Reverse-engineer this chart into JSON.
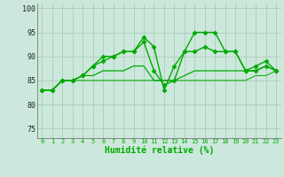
{
  "xlabel": "Humidité relative (%)",
  "background_color": "#cce8dc",
  "grid_color": "#aaccb8",
  "line_color": "#00aa00",
  "xlim": [
    -0.5,
    23.5
  ],
  "ylim": [
    73,
    101
  ],
  "yticks": [
    75,
    80,
    85,
    90,
    95,
    100
  ],
  "xticks": [
    0,
    1,
    2,
    3,
    4,
    5,
    6,
    7,
    8,
    9,
    10,
    11,
    12,
    13,
    14,
    15,
    16,
    17,
    18,
    19,
    20,
    21,
    22,
    23
  ],
  "series": [
    {
      "y": [
        83,
        83,
        85,
        85,
        86,
        88,
        90,
        90,
        91,
        91,
        94,
        92,
        83,
        88,
        91,
        95,
        95,
        95,
        91,
        91,
        87,
        87,
        88,
        87
      ],
      "marker": "D",
      "lw": 1.0,
      "ls": "-",
      "ms": 2.5
    },
    {
      "y": [
        83,
        83,
        85,
        85,
        86,
        88,
        89,
        90,
        91,
        91,
        93,
        87,
        84,
        85,
        91,
        91,
        92,
        91,
        91,
        91,
        87,
        88,
        89,
        87
      ],
      "marker": "D",
      "lw": 1.0,
      "ls": "-",
      "ms": 2.5
    },
    {
      "y": [
        83,
        83,
        85,
        85,
        86,
        86,
        87,
        87,
        87,
        88,
        88,
        85,
        85,
        85,
        86,
        87,
        87,
        87,
        87,
        87,
        87,
        87,
        88,
        87
      ],
      "marker": "",
      "lw": 0.9,
      "ls": "-",
      "ms": 0
    },
    {
      "y": [
        83,
        83,
        85,
        85,
        85,
        85,
        85,
        85,
        85,
        85,
        85,
        85,
        85,
        85,
        85,
        85,
        85,
        85,
        85,
        85,
        85,
        86,
        86,
        87
      ],
      "marker": "",
      "lw": 0.7,
      "ls": "-",
      "ms": 0
    }
  ]
}
